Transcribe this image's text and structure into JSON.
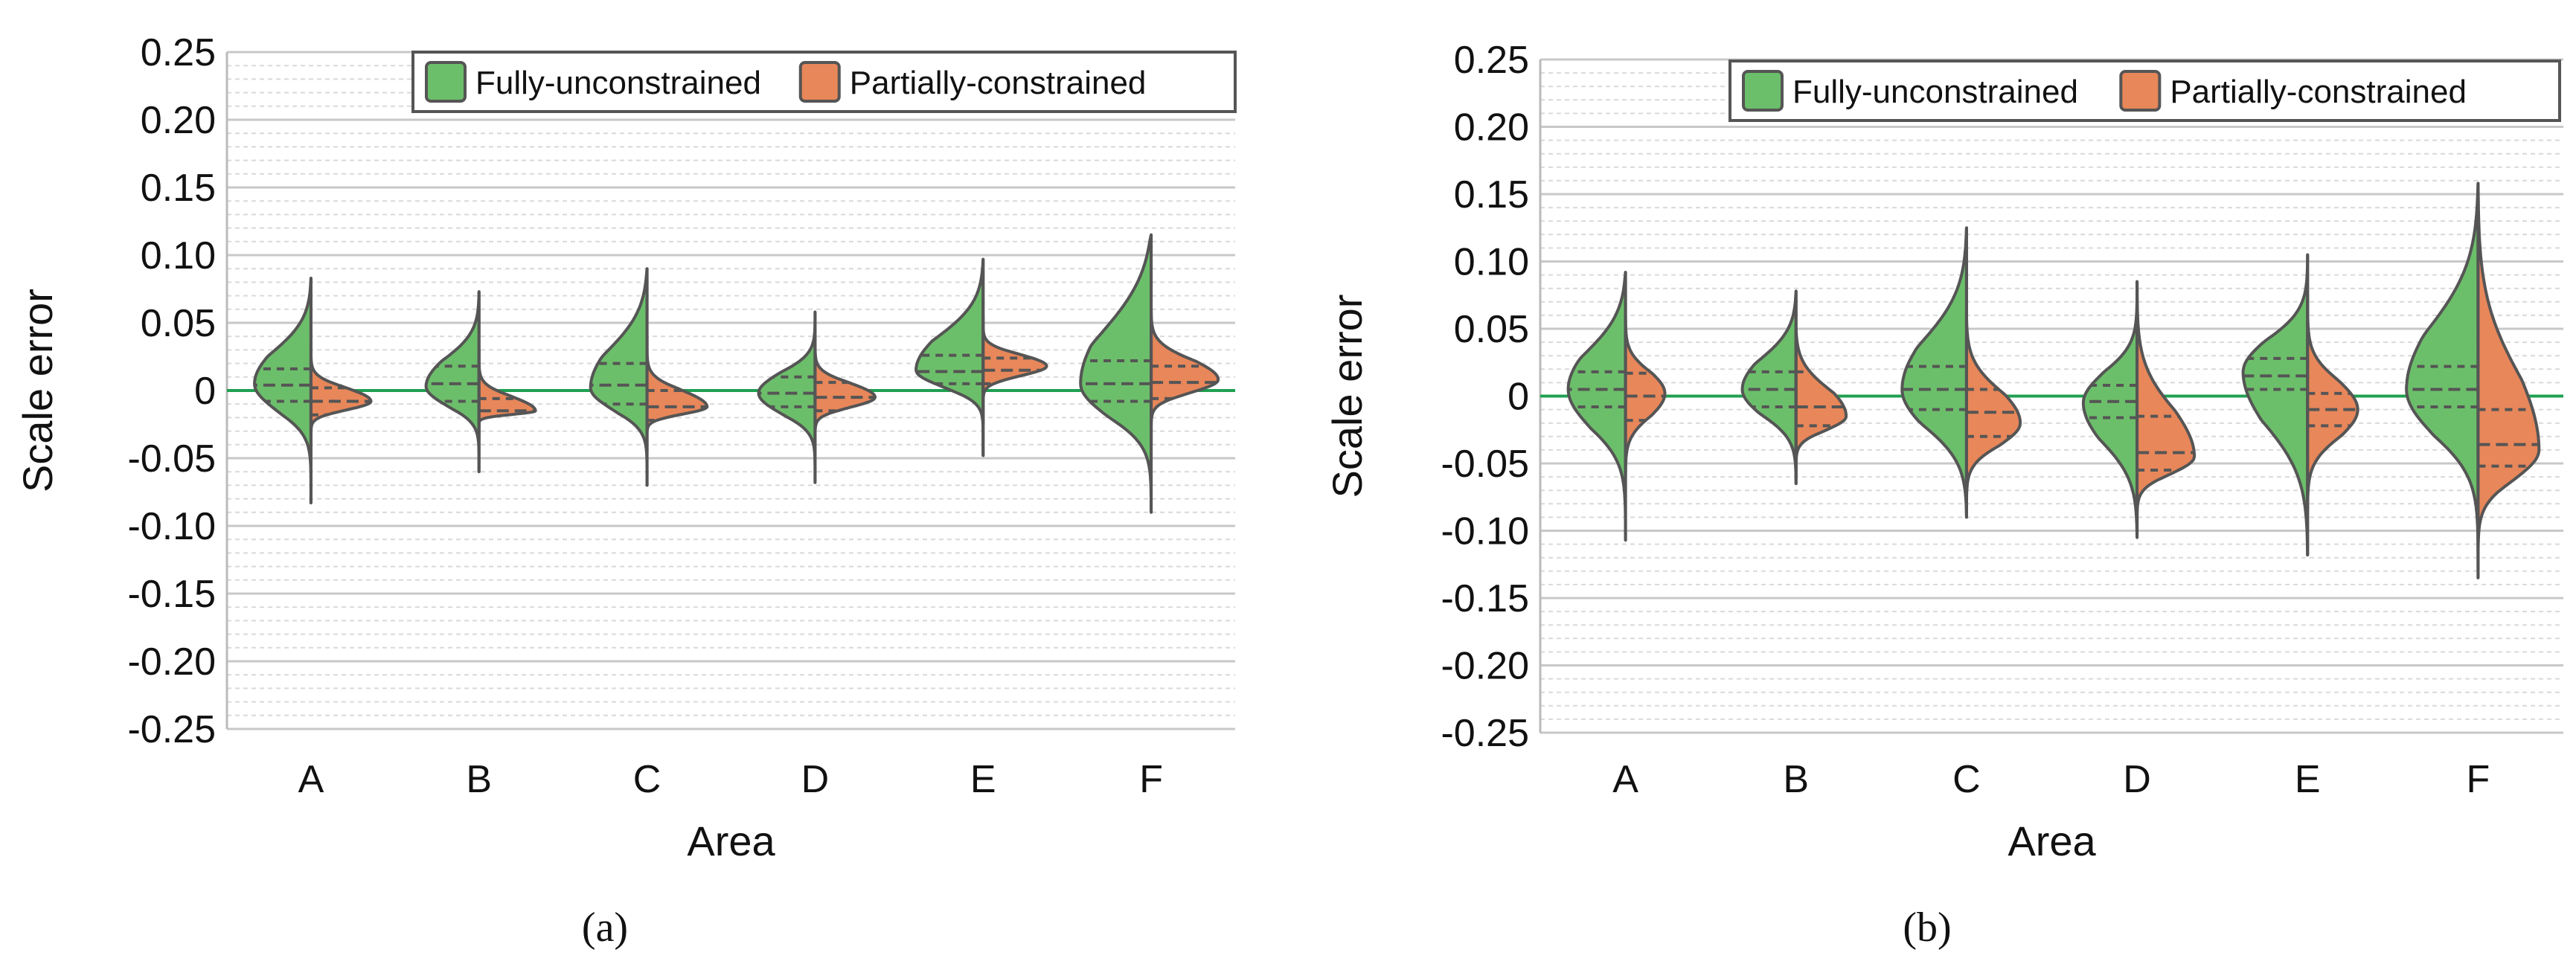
{
  "colors": {
    "fully": "#6cbf6a",
    "partially": "#e8875a",
    "outline": "#555555",
    "zero_line": "#1fa050",
    "major_grid": "#c8c8c8",
    "minor_grid": "#d9d9d9"
  },
  "chart_data": [
    {
      "type": "violin",
      "caption": "(a)",
      "xlabel": "Area",
      "ylabel": "Scale error",
      "ylim": [
        -0.25,
        0.25
      ],
      "yticks": [
        "0.25",
        "0.20",
        "0.15",
        "0.10",
        "0.05",
        "0",
        "-0.05",
        "-0.10",
        "-0.15",
        "-0.20",
        "-0.25"
      ],
      "legend": [
        "Fully-unconstrained",
        "Partially-constrained"
      ],
      "legend_position": "top-right",
      "categories": [
        "A",
        "B",
        "C",
        "D",
        "E",
        "F"
      ],
      "series": [
        {
          "name": "Fully-unconstrained",
          "violins": [
            {
              "top": 0.083,
              "bottom": -0.083,
              "peak": 0.005,
              "width": 0.8,
              "upper": 0.55,
              "lower": 0.35,
              "q1": -0.008,
              "median": 0.004,
              "q3": 0.016
            },
            {
              "top": 0.073,
              "bottom": -0.06,
              "peak": 0.003,
              "width": 0.75,
              "upper": 0.5,
              "lower": 0.35,
              "q1": -0.008,
              "median": 0.005,
              "q3": 0.018
            },
            {
              "top": 0.09,
              "bottom": -0.07,
              "peak": 0.002,
              "width": 0.8,
              "upper": 0.6,
              "lower": 0.35,
              "q1": -0.01,
              "median": 0.004,
              "q3": 0.02
            },
            {
              "top": 0.058,
              "bottom": -0.068,
              "peak": -0.002,
              "width": 0.8,
              "upper": 0.4,
              "lower": 0.35,
              "q1": -0.012,
              "median": -0.002,
              "q3": 0.01
            },
            {
              "top": 0.097,
              "bottom": -0.048,
              "peak": 0.015,
              "width": 0.95,
              "upper": 0.55,
              "lower": 0.3,
              "q1": 0.005,
              "median": 0.014,
              "q3": 0.026
            },
            {
              "top": 0.115,
              "bottom": -0.09,
              "peak": 0.005,
              "width": 1.0,
              "upper": 0.7,
              "lower": 0.4,
              "q1": -0.008,
              "median": 0.005,
              "q3": 0.022
            }
          ]
        },
        {
          "name": "Partially-constrained",
          "violins": [
            {
              "top": 0.035,
              "bottom": -0.04,
              "peak": -0.008,
              "width": 0.85,
              "upper": 0.35,
              "lower": 0.3,
              "q1": -0.018,
              "median": -0.008,
              "q3": 0.002
            },
            {
              "top": 0.03,
              "bottom": -0.035,
              "peak": -0.015,
              "width": 0.8,
              "upper": 0.35,
              "lower": 0.2,
              "q1": -0.025,
              "median": -0.015,
              "q3": -0.006
            },
            {
              "top": 0.04,
              "bottom": -0.045,
              "peak": -0.012,
              "width": 0.85,
              "upper": 0.35,
              "lower": 0.25,
              "q1": -0.022,
              "median": -0.012,
              "q3": 0.0
            },
            {
              "top": 0.04,
              "bottom": -0.042,
              "peak": -0.005,
              "width": 0.85,
              "upper": 0.35,
              "lower": 0.3,
              "q1": -0.015,
              "median": -0.005,
              "q3": 0.006
            },
            {
              "top": 0.055,
              "bottom": -0.025,
              "peak": 0.018,
              "width": 0.9,
              "upper": 0.35,
              "lower": 0.25,
              "q1": 0.005,
              "median": 0.015,
              "q3": 0.024
            },
            {
              "top": 0.06,
              "bottom": -0.04,
              "peak": 0.008,
              "width": 0.95,
              "upper": 0.45,
              "lower": 0.3,
              "q1": -0.006,
              "median": 0.006,
              "q3": 0.018
            }
          ]
        }
      ]
    },
    {
      "type": "violin",
      "caption": "(b)",
      "xlabel": "Area",
      "ylabel": "Scale error",
      "ylim": [
        -0.25,
        0.25
      ],
      "yticks": [
        "0.25",
        "0.20",
        "0.15",
        "0.10",
        "0.05",
        "0",
        "-0.05",
        "-0.10",
        "-0.15",
        "-0.20",
        "-0.25"
      ],
      "legend": [
        "Fully-unconstrained",
        "Partially-constrained"
      ],
      "legend_position": "top-right",
      "categories": [
        "A",
        "B",
        "C",
        "D",
        "E",
        "F"
      ],
      "series": [
        {
          "name": "Fully-unconstrained",
          "violins": [
            {
              "top": 0.092,
              "bottom": -0.107,
              "peak": 0.005,
              "width": 0.8,
              "upper": 0.6,
              "lower": 0.4,
              "q1": -0.008,
              "median": 0.005,
              "q3": 0.018
            },
            {
              "top": 0.078,
              "bottom": -0.065,
              "peak": 0.005,
              "width": 0.75,
              "upper": 0.55,
              "lower": 0.45,
              "q1": -0.008,
              "median": 0.005,
              "q3": 0.018
            },
            {
              "top": 0.125,
              "bottom": -0.09,
              "peak": 0.005,
              "width": 0.9,
              "upper": 0.55,
              "lower": 0.5,
              "q1": -0.01,
              "median": 0.005,
              "q3": 0.022
            },
            {
              "top": 0.085,
              "bottom": -0.105,
              "peak": -0.005,
              "width": 0.75,
              "upper": 0.4,
              "lower": 0.5,
              "q1": -0.016,
              "median": -0.004,
              "q3": 0.008
            },
            {
              "top": 0.105,
              "bottom": -0.118,
              "peak": 0.018,
              "width": 0.9,
              "upper": 0.45,
              "lower": 0.5,
              "q1": 0.005,
              "median": 0.015,
              "q3": 0.028
            },
            {
              "top": 0.158,
              "bottom": -0.13,
              "peak": 0.005,
              "width": 1.0,
              "upper": 0.55,
              "lower": 0.4,
              "q1": -0.008,
              "median": 0.005,
              "q3": 0.022
            }
          ]
        },
        {
          "name": "Partially-constrained",
          "violins": [
            {
              "top": 0.06,
              "bottom": -0.06,
              "peak": 0.002,
              "width": 0.55,
              "upper": 0.45,
              "lower": 0.45,
              "q1": -0.018,
              "median": 0.0,
              "q3": 0.017
            },
            {
              "top": 0.05,
              "bottom": -0.06,
              "peak": -0.015,
              "width": 0.7,
              "upper": 0.55,
              "lower": 0.35,
              "q1": -0.022,
              "median": -0.008,
              "q3": 0.018
            },
            {
              "top": 0.06,
              "bottom": -0.085,
              "peak": -0.02,
              "width": 0.75,
              "upper": 0.5,
              "lower": 0.4,
              "q1": -0.03,
              "median": -0.012,
              "q3": 0.005
            },
            {
              "top": 0.085,
              "bottom": -0.1,
              "peak": -0.045,
              "width": 0.8,
              "upper": 0.45,
              "lower": 0.35,
              "q1": -0.055,
              "median": -0.042,
              "q3": -0.015
            },
            {
              "top": 0.075,
              "bottom": -0.085,
              "peak": -0.01,
              "width": 0.7,
              "upper": 0.4,
              "lower": 0.45,
              "q1": -0.022,
              "median": -0.01,
              "q3": 0.002
            },
            {
              "top": 0.158,
              "bottom": -0.135,
              "peak": -0.04,
              "width": 0.85,
              "upper": 0.5,
              "lower": 0.35,
              "q1": -0.052,
              "median": -0.036,
              "q3": -0.01
            }
          ]
        }
      ]
    }
  ]
}
